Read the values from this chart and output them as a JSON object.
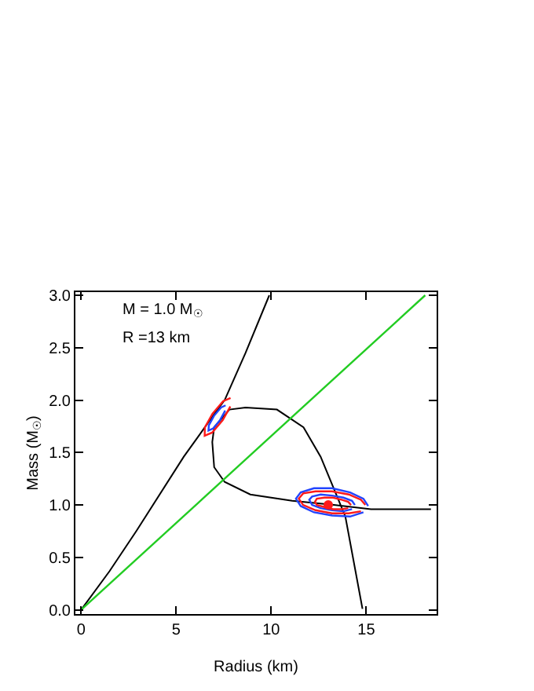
{
  "chart_data": {
    "type": "line",
    "xlabel": "Radius (km)",
    "ylabel": "Mass (M$_{☉}$)",
    "annotations": [
      "M = 1.0 M$_{☉}$",
      "R =13 km"
    ],
    "xlim": [
      -0.3,
      18.7
    ],
    "xticks": [
      0,
      5,
      10,
      15
    ],
    "ylim": [
      -0.04,
      3.03
    ],
    "yticks": [
      {
        "value": 0,
        "label": "0.0"
      },
      {
        "value": 0.5,
        "label": "0.5"
      },
      {
        "value": 1,
        "label": "1.0"
      },
      {
        "value": 1.5,
        "label": "1.5"
      },
      {
        "value": 2,
        "label": "2.0"
      },
      {
        "value": 2.5,
        "label": "2.5"
      },
      {
        "value": 3,
        "label": "3.0"
      }
    ],
    "marker": "none",
    "line_style": "solid",
    "series": [
      {
        "color": "#000000",
        "x": [
          0,
          1.5,
          2.9,
          5.4,
          6.9,
          7.55,
          8.65,
          9.9
        ],
        "values": [
          0,
          0.37,
          0.75,
          1.46,
          1.84,
          2.0,
          2.45,
          3.0
        ]
      },
      {
        "color": "#000000",
        "x": [
          14.8,
          13.9,
          12.6,
          11.7,
          10.3,
          8.65,
          7.8,
          7.0,
          6.9,
          7.0,
          7.55,
          8.9,
          11.1,
          13.3,
          15.25,
          18.4
        ],
        "values": [
          0.01,
          0.89,
          1.46,
          1.74,
          1.91,
          1.93,
          1.91,
          1.74,
          1.6,
          1.36,
          1.22,
          1.1,
          1.04,
          1.0,
          0.96,
          0.96
        ]
      },
      {
        "color": "#22cc22",
        "x": [
          0,
          18.1
        ],
        "values": [
          0,
          3.0
        ]
      },
      {
        "color": "#ff1a1a",
        "x": [
          7.86,
          7.47,
          6.91,
          6.51,
          6.5,
          6.89,
          7.45,
          7.85
        ],
        "values": [
          2.02,
          1.99,
          1.87,
          1.74,
          1.66,
          1.69,
          1.81,
          1.94
        ]
      },
      {
        "color": "#2244ff",
        "x": [
          7.6,
          7.36,
          6.99,
          6.72,
          6.7,
          6.95,
          7.31,
          7.58
        ],
        "values": [
          1.95,
          1.93,
          1.85,
          1.76,
          1.71,
          1.73,
          1.81,
          1.9
        ]
      },
      {
        "color": "#2244ff",
        "x": [
          15.1,
          14.85,
          14.15,
          13.2,
          12.25,
          11.55,
          11.3,
          11.55,
          12.25,
          13.2,
          14.15,
          14.85
        ],
        "values": [
          0.99,
          1.06,
          1.12,
          1.16,
          1.16,
          1.12,
          1.06,
          0.99,
          0.93,
          0.9,
          0.89,
          0.93
        ]
      },
      {
        "color": "#ff1a1a",
        "x": [
          14.95,
          14.72,
          14.08,
          13.2,
          12.33,
          11.68,
          11.45,
          11.68,
          12.33,
          13.2,
          14.08,
          14.72
        ],
        "values": [
          1.0,
          1.05,
          1.1,
          1.13,
          1.13,
          1.11,
          1.06,
          1.0,
          0.95,
          0.92,
          0.92,
          0.94
        ]
      },
      {
        "color": "#2244ff",
        "x": [
          14.4,
          14.25,
          13.8,
          13.2,
          12.6,
          12.15,
          12.0,
          12.15,
          12.6,
          13.2,
          13.8,
          14.25
        ],
        "values": [
          1.0,
          1.04,
          1.07,
          1.09,
          1.1,
          1.08,
          1.05,
          1.0,
          0.97,
          0.95,
          0.94,
          0.96
        ]
      },
      {
        "color": "#ff1a1a",
        "x": [
          14.2,
          14.05,
          13.7,
          13.25,
          12.8,
          12.4,
          12.3,
          12.4,
          12.8,
          13.25,
          13.7,
          14.05
        ],
        "values": [
          1.0,
          1.03,
          1.05,
          1.07,
          1.07,
          1.06,
          1.03,
          1.0,
          0.98,
          0.96,
          0.96,
          0.97
        ]
      },
      {
        "type": "scatter",
        "marker": "circle",
        "color": "#ff1a1a",
        "x": [
          13.0
        ],
        "values": [
          1.0
        ]
      }
    ]
  }
}
